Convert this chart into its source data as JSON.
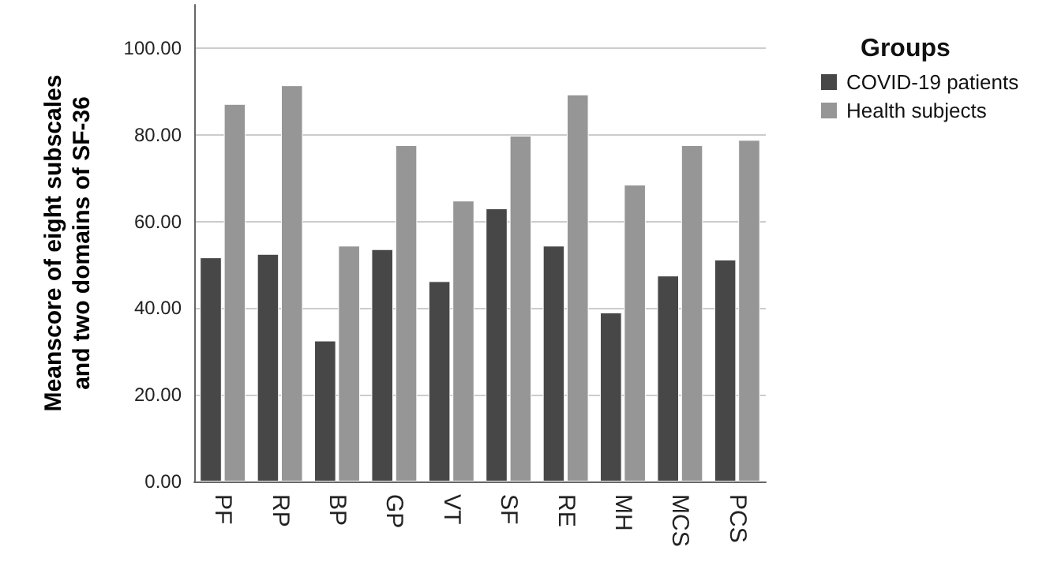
{
  "chart_data": {
    "type": "bar",
    "ylabel": "Meanscore of eight subscales\nand two domains of SF-36",
    "legend_title": "Groups",
    "categories": [
      "PF",
      "RP",
      "BP",
      "GP",
      "VT",
      "SF",
      "RE",
      "MH",
      "MCS",
      "PCS"
    ],
    "series": [
      {
        "name": "COVID-19 patients",
        "color": "#474747",
        "values": [
          51.7,
          52.5,
          32.5,
          53.6,
          46.2,
          63.0,
          54.4,
          39.0,
          47.5,
          51.2
        ]
      },
      {
        "name": "Health subjects",
        "color": "#969696",
        "values": [
          87.1,
          91.4,
          54.4,
          77.6,
          64.8,
          79.8,
          89.3,
          68.5,
          77.6,
          78.8
        ]
      }
    ],
    "ylim": [
      0,
      110
    ],
    "yticks": [
      {
        "value": 0,
        "label": "0.00"
      },
      {
        "value": 20,
        "label": "20.00"
      },
      {
        "value": 40,
        "label": "40.00"
      },
      {
        "value": 60,
        "label": "60.00"
      },
      {
        "value": 80,
        "label": "80.00"
      },
      {
        "value": 100,
        "label": "100.00"
      }
    ],
    "grid": "y",
    "legend": "right"
  }
}
